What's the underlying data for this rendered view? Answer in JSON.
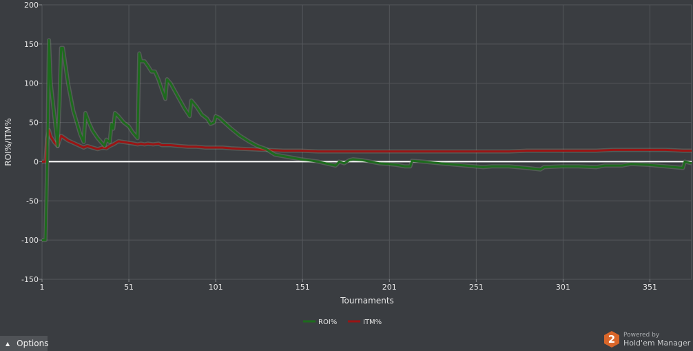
{
  "chart_data": {
    "type": "line",
    "title": "",
    "xlabel": "Tournaments",
    "ylabel": "ROI%/ITM%",
    "xlim": [
      1,
      375
    ],
    "ylim": [
      -150,
      200
    ],
    "xticks": [
      1,
      51,
      101,
      151,
      201,
      251,
      301,
      351
    ],
    "yticks": [
      -150,
      -100,
      -50,
      0,
      50,
      100,
      150,
      200
    ],
    "grid": true,
    "legend_position": "bottom-center",
    "series": [
      {
        "name": "ROI%",
        "color": "#1d6b1d",
        "points": [
          [
            1,
            -100
          ],
          [
            3,
            -100
          ],
          [
            4,
            0
          ],
          [
            5,
            155
          ],
          [
            6,
            100
          ],
          [
            9,
            40
          ],
          [
            10,
            20
          ],
          [
            11,
            70
          ],
          [
            12,
            145
          ],
          [
            13,
            145
          ],
          [
            16,
            100
          ],
          [
            19,
            65
          ],
          [
            23,
            35
          ],
          [
            25,
            25
          ],
          [
            26,
            62
          ],
          [
            28,
            50
          ],
          [
            30,
            40
          ],
          [
            33,
            30
          ],
          [
            35,
            25
          ],
          [
            37,
            20
          ],
          [
            38,
            28
          ],
          [
            40,
            25
          ],
          [
            41,
            48
          ],
          [
            42,
            42
          ],
          [
            43,
            62
          ],
          [
            45,
            58
          ],
          [
            48,
            50
          ],
          [
            51,
            45
          ],
          [
            53,
            38
          ],
          [
            56,
            30
          ],
          [
            57,
            138
          ],
          [
            58,
            128
          ],
          [
            60,
            128
          ],
          [
            62,
            122
          ],
          [
            64,
            115
          ],
          [
            66,
            115
          ],
          [
            68,
            105
          ],
          [
            70,
            92
          ],
          [
            72,
            80
          ],
          [
            73,
            105
          ],
          [
            75,
            100
          ],
          [
            77,
            92
          ],
          [
            80,
            80
          ],
          [
            83,
            68
          ],
          [
            86,
            58
          ],
          [
            87,
            78
          ],
          [
            90,
            70
          ],
          [
            93,
            60
          ],
          [
            96,
            55
          ],
          [
            98,
            48
          ],
          [
            100,
            50
          ],
          [
            101,
            58
          ],
          [
            103,
            56
          ],
          [
            106,
            50
          ],
          [
            110,
            42
          ],
          [
            115,
            33
          ],
          [
            120,
            26
          ],
          [
            125,
            20
          ],
          [
            130,
            16
          ],
          [
            135,
            9
          ],
          [
            140,
            7
          ],
          [
            150,
            3
          ],
          [
            160,
            0
          ],
          [
            170,
            -5
          ],
          [
            171,
            -3
          ],
          [
            172,
            0
          ],
          [
            175,
            -2
          ],
          [
            178,
            2
          ],
          [
            180,
            3
          ],
          [
            185,
            2
          ],
          [
            190,
            0
          ],
          [
            195,
            -2
          ],
          [
            200,
            -3
          ],
          [
            205,
            -4
          ],
          [
            210,
            -6
          ],
          [
            213,
            -6
          ],
          [
            214,
            1
          ],
          [
            220,
            0
          ],
          [
            230,
            -2
          ],
          [
            240,
            -4
          ],
          [
            250,
            -6
          ],
          [
            255,
            -7
          ],
          [
            260,
            -6
          ],
          [
            270,
            -6
          ],
          [
            280,
            -8
          ],
          [
            288,
            -10
          ],
          [
            290,
            -7
          ],
          [
            300,
            -6
          ],
          [
            310,
            -6
          ],
          [
            320,
            -7
          ],
          [
            325,
            -5
          ],
          [
            335,
            -5
          ],
          [
            340,
            -3
          ],
          [
            350,
            -4
          ],
          [
            360,
            -6
          ],
          [
            370,
            -8
          ],
          [
            371,
            0
          ],
          [
            375,
            -2
          ]
        ]
      },
      {
        "name": "ITM%",
        "color": "#9a1414",
        "points": [
          [
            1,
            0
          ],
          [
            3,
            0
          ],
          [
            4,
            30
          ],
          [
            5,
            40
          ],
          [
            6,
            32
          ],
          [
            8,
            25
          ],
          [
            10,
            20
          ],
          [
            12,
            33
          ],
          [
            14,
            30
          ],
          [
            16,
            27
          ],
          [
            20,
            23
          ],
          [
            25,
            18
          ],
          [
            27,
            20
          ],
          [
            30,
            18
          ],
          [
            33,
            16
          ],
          [
            36,
            18
          ],
          [
            38,
            17
          ],
          [
            40,
            20
          ],
          [
            42,
            22
          ],
          [
            45,
            26
          ],
          [
            48,
            25
          ],
          [
            51,
            24
          ],
          [
            54,
            23
          ],
          [
            56,
            22
          ],
          [
            58,
            23
          ],
          [
            60,
            22
          ],
          [
            62,
            23
          ],
          [
            65,
            22
          ],
          [
            68,
            23
          ],
          [
            70,
            21
          ],
          [
            75,
            21
          ],
          [
            80,
            20
          ],
          [
            85,
            19
          ],
          [
            90,
            19
          ],
          [
            95,
            18
          ],
          [
            100,
            18
          ],
          [
            105,
            18
          ],
          [
            110,
            17
          ],
          [
            120,
            16
          ],
          [
            130,
            15
          ],
          [
            140,
            14
          ],
          [
            150,
            14
          ],
          [
            160,
            13
          ],
          [
            170,
            13
          ],
          [
            180,
            13
          ],
          [
            190,
            13
          ],
          [
            200,
            13
          ],
          [
            210,
            13
          ],
          [
            220,
            13
          ],
          [
            230,
            13
          ],
          [
            240,
            13
          ],
          [
            250,
            13
          ],
          [
            260,
            13
          ],
          [
            270,
            13
          ],
          [
            280,
            14
          ],
          [
            290,
            14
          ],
          [
            300,
            14
          ],
          [
            310,
            14
          ],
          [
            320,
            14
          ],
          [
            330,
            15
          ],
          [
            340,
            15
          ],
          [
            350,
            15
          ],
          [
            360,
            15
          ],
          [
            370,
            14
          ],
          [
            375,
            14
          ]
        ]
      }
    ]
  },
  "ui": {
    "options_label": "Options",
    "options_icon": "chevron-up-icon",
    "brand_powered": "Powered by",
    "brand_name": "Hold'em Manager",
    "brand_logo_text": "2",
    "brand_color": "#d9662a"
  }
}
